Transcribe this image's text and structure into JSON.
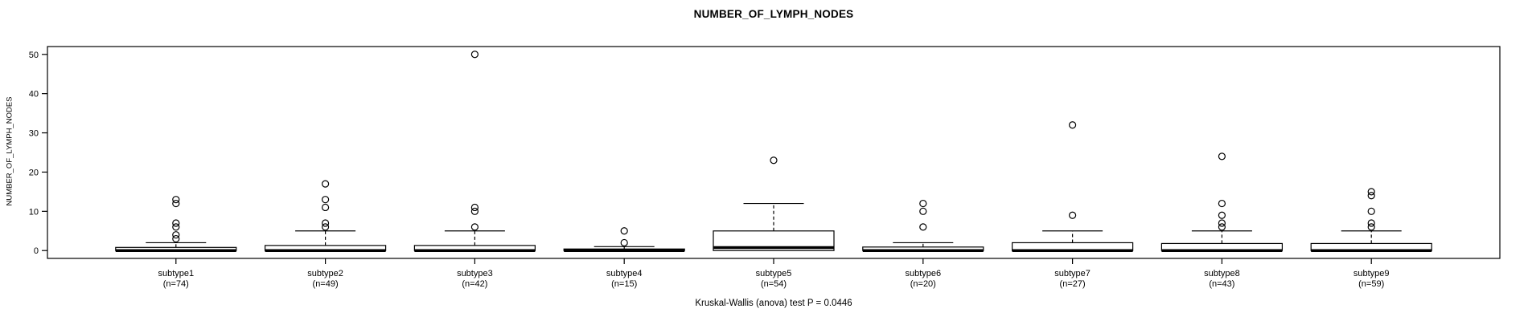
{
  "title": "NUMBER_OF_LYMPH_NODES",
  "footnote": "Kruskal-Wallis (anova) test P = 0.0446",
  "colors": {
    "line": "#000000",
    "frame": "#000000",
    "box_fill": "#ffffff",
    "background": "#ffffff"
  },
  "chart_data": {
    "type": "boxplot",
    "title": "NUMBER_OF_LYMPH_NODES",
    "ylabel": "NUMBER_OF_LYMPH_NODES",
    "xlabel": "",
    "ylim": [
      -2,
      52
    ],
    "yticks": [
      0,
      10,
      20,
      30,
      40,
      50
    ],
    "grid": false,
    "legend": "none",
    "whisker_style": "dashed",
    "footnote": "Kruskal-Wallis (anova) test P = 0.0446",
    "groups": [
      {
        "label": "subtype1",
        "n_label": "(n=74)",
        "n": 74,
        "whisker_low": 0,
        "q1": 0,
        "median": 0,
        "q3": 0.8,
        "whisker_high": 2,
        "outliers": [
          3,
          4,
          6,
          7,
          12,
          13
        ]
      },
      {
        "label": "subtype2",
        "n_label": "(n=49)",
        "n": 49,
        "whisker_low": 0,
        "q1": 0,
        "median": 0,
        "q3": 1.3,
        "whisker_high": 5,
        "outliers": [
          6,
          7,
          11,
          13,
          17
        ]
      },
      {
        "label": "subtype3",
        "n_label": "(n=42)",
        "n": 42,
        "whisker_low": 0,
        "q1": 0,
        "median": 0,
        "q3": 1.3,
        "whisker_high": 5,
        "outliers": [
          6,
          10,
          11,
          50
        ]
      },
      {
        "label": "subtype4",
        "n_label": "(n=15)",
        "n": 15,
        "whisker_low": 0,
        "q1": 0,
        "median": 0,
        "q3": 0.4,
        "whisker_high": 1,
        "outliers": [
          2,
          5
        ]
      },
      {
        "label": "subtype5",
        "n_label": "(n=54)",
        "n": 54,
        "whisker_low": 0,
        "q1": 0,
        "median": 0.75,
        "q3": 5,
        "whisker_high": 12,
        "outliers": [
          23
        ]
      },
      {
        "label": "subtype6",
        "n_label": "(n=20)",
        "n": 20,
        "whisker_low": 0,
        "q1": 0,
        "median": 0,
        "q3": 0.9,
        "whisker_high": 2,
        "outliers": [
          6,
          10,
          12
        ]
      },
      {
        "label": "subtype7",
        "n_label": "(n=27)",
        "n": 27,
        "whisker_low": 0,
        "q1": 0,
        "median": 0,
        "q3": 2,
        "whisker_high": 5,
        "outliers": [
          9,
          32
        ]
      },
      {
        "label": "subtype8",
        "n_label": "(n=43)",
        "n": 43,
        "whisker_low": 0,
        "q1": 0,
        "median": 0,
        "q3": 1.8,
        "whisker_high": 5,
        "outliers": [
          6,
          7,
          9,
          12,
          24
        ]
      },
      {
        "label": "subtype9",
        "n_label": "(n=59)",
        "n": 59,
        "whisker_low": 0,
        "q1": 0,
        "median": 0,
        "q3": 1.8,
        "whisker_high": 5,
        "outliers": [
          6,
          7,
          10,
          14,
          15
        ]
      }
    ]
  }
}
